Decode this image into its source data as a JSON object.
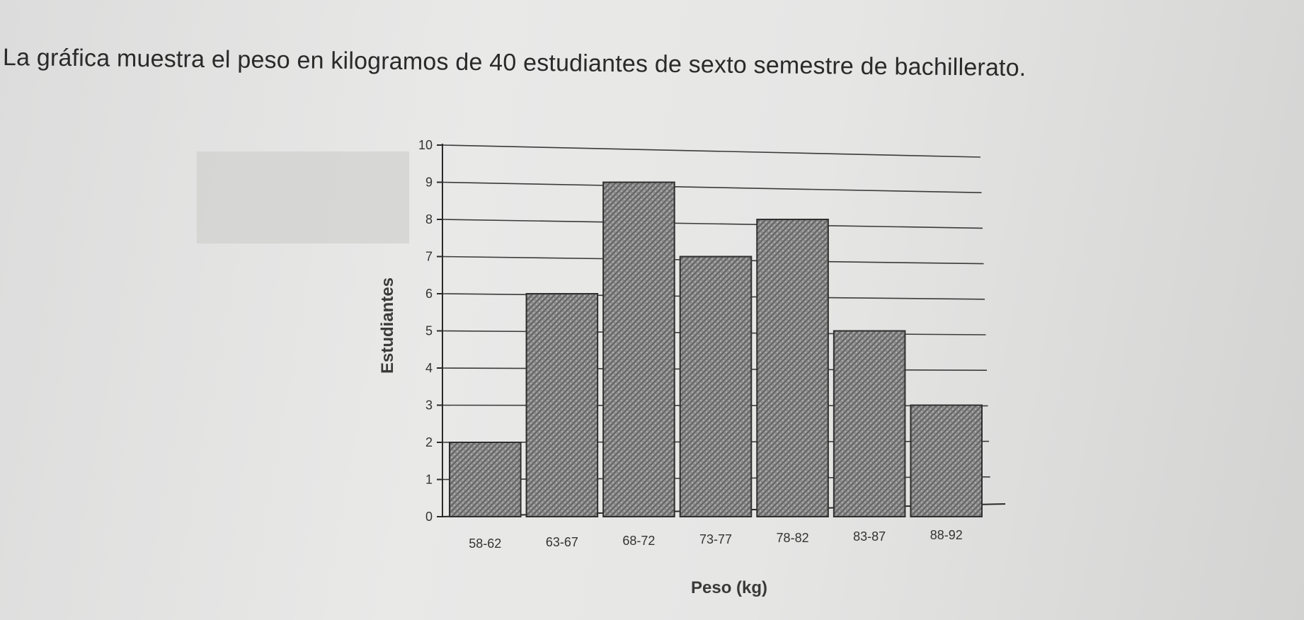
{
  "question": {
    "text": "La gráfica muestra el peso en kilogramos de 40 estudiantes de sexto semestre de bachillerato."
  },
  "chart_data": {
    "type": "bar",
    "title": "",
    "xlabel": "Peso (kg)",
    "ylabel": "Estudiantes",
    "categories": [
      "58-62",
      "63-67",
      "68-72",
      "73-77",
      "78-82",
      "83-87",
      "88-92"
    ],
    "values": [
      2,
      6,
      9,
      7,
      8,
      5,
      3
    ],
    "ylim": [
      0,
      10
    ],
    "yticks": [
      0,
      1,
      2,
      3,
      4,
      5,
      6,
      7,
      8,
      9,
      10
    ],
    "grid": true,
    "bar_pattern": "hatched-gray"
  }
}
